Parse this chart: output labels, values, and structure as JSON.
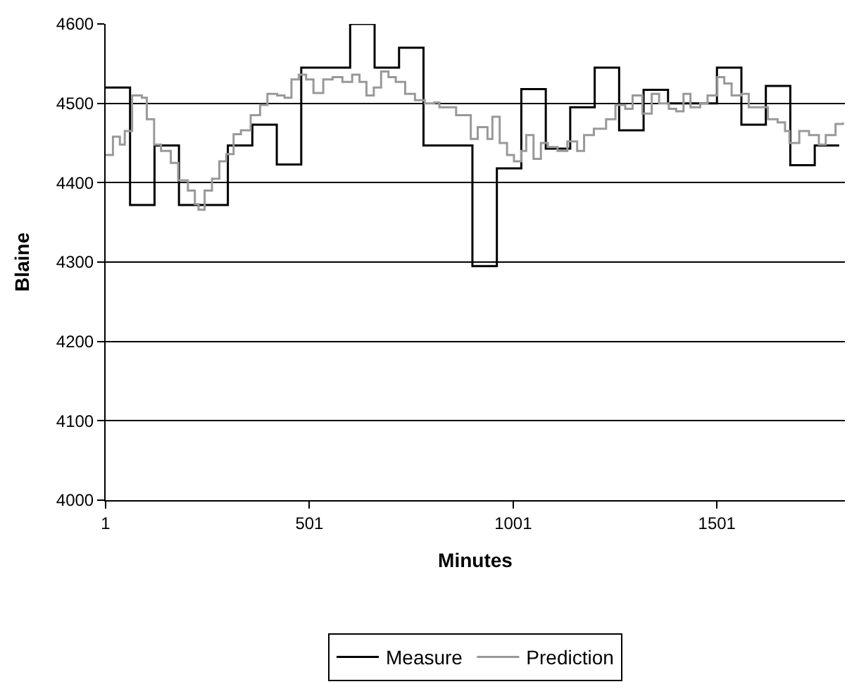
{
  "chart_data": {
    "type": "step",
    "xlabel": "Minutes",
    "ylabel": "Blaine",
    "xlim": [
      1,
      1815
    ],
    "xticks": [
      1,
      501,
      1001,
      1501
    ],
    "ylim": [
      4000,
      4600
    ],
    "yticks": [
      4000,
      4100,
      4200,
      4300,
      4400,
      4500,
      4600
    ],
    "grid": "y",
    "legend": "bottom",
    "series": [
      {
        "name": "Measure",
        "color": "#000000",
        "x": [
          1,
          61,
          121,
          181,
          241,
          301,
          361,
          421,
          481,
          541,
          601,
          661,
          721,
          781,
          841,
          901,
          961,
          1021,
          1081,
          1141,
          1201,
          1261,
          1321,
          1381,
          1441,
          1501,
          1561,
          1621,
          1681,
          1741,
          1801
        ],
        "values": [
          4520,
          4372,
          4447,
          4372,
          4372,
          4447,
          4473,
          4423,
          4545,
          4545,
          4600,
          4545,
          4570,
          4447,
          4447,
          4295,
          4418,
          4518,
          4443,
          4495,
          4545,
          4466,
          4517,
          4500,
          4500,
          4545,
          4473,
          4522,
          4422,
          4447,
          4447
        ]
      },
      {
        "name": "Prediction",
        "color": "#999999",
        "x": [
          1,
          19,
          36,
          48,
          66,
          90,
          102,
          120,
          137,
          161,
          179,
          203,
          220,
          229,
          244,
          262,
          280,
          297,
          315,
          333,
          357,
          380,
          398,
          422,
          440,
          457,
          475,
          493,
          511,
          535,
          558,
          582,
          606,
          624,
          641,
          659,
          677,
          695,
          713,
          736,
          760,
          784,
          807,
          820,
          849,
          861,
          885,
          897,
          914,
          938,
          950,
          968,
          986,
          1003,
          1021,
          1033,
          1051,
          1069,
          1086,
          1110,
          1134,
          1158,
          1175,
          1199,
          1229,
          1252,
          1276,
          1294,
          1318,
          1341,
          1359,
          1383,
          1401,
          1419,
          1436,
          1460,
          1478,
          1502,
          1519,
          1537,
          1561,
          1579,
          1602,
          1626,
          1650,
          1668,
          1679,
          1703,
          1727,
          1751,
          1768,
          1792,
          1810
        ],
        "values": [
          4435,
          4458,
          4448,
          4465,
          4510,
          4507,
          4480,
          4448,
          4440,
          4425,
          4403,
          4390,
          4373,
          4366,
          4390,
          4405,
          4427,
          4436,
          4461,
          4466,
          4485,
          4498,
          4512,
          4510,
          4507,
          4530,
          4536,
          4530,
          4513,
          4530,
          4533,
          4527,
          4536,
          4527,
          4510,
          4520,
          4540,
          4533,
          4527,
          4512,
          4504,
          4500,
          4501,
          4495,
          4495,
          4485,
          4485,
          4455,
          4470,
          4455,
          4483,
          4450,
          4435,
          4427,
          4440,
          4460,
          4430,
          4450,
          4445,
          4440,
          4452,
          4440,
          4460,
          4468,
          4480,
          4498,
          4493,
          4510,
          4487,
          4512,
          4500,
          4493,
          4490,
          4512,
          4495,
          4500,
          4510,
          4533,
          4525,
          4510,
          4512,
          4495,
          4495,
          4480,
          4476,
          4465,
          4450,
          4465,
          4460,
          4448,
          4460,
          4474,
          4476
        ]
      }
    ]
  }
}
